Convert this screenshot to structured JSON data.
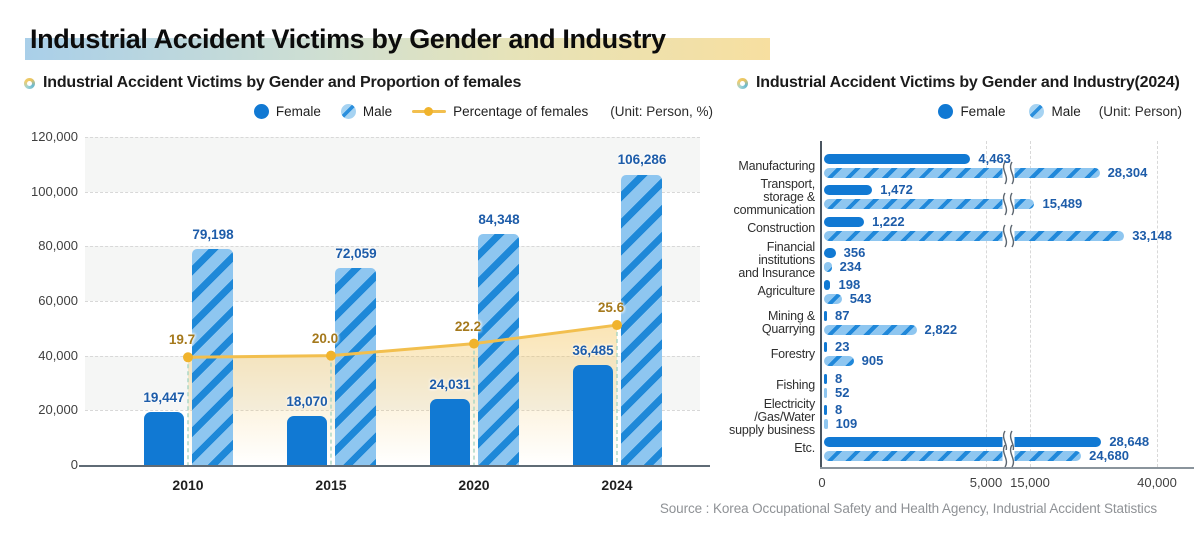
{
  "page_title": "Industrial Accident Victims by Gender and Industry",
  "source_note": "Source : Korea Occupational Safety and Health Agency, Industrial Accident Statistics",
  "colors": {
    "female": "#1179d3",
    "male_base": "#8ec6f0",
    "male_stripe": "#1e88d8",
    "line": "#f2bf4e",
    "line_point": "#f0b32c",
    "value_label": "#1d5ca9",
    "pct_label": "#a5791c",
    "zebra_band": "#f5f6f5",
    "grid": "#d8d8d8",
    "drop_line": "#a7d5c3",
    "title_band_gradient": [
      "#a9cfe9",
      "#dce3c4",
      "#f7dfa0"
    ]
  },
  "chart_data": [
    {
      "type": "bar",
      "title": "Industrial Accident Victims by Gender and Proportion of females",
      "unit_label": "(Unit: Person, %)",
      "legend_position": "top",
      "categories": [
        "2010",
        "2015",
        "2020",
        "2024"
      ],
      "series": [
        {
          "name": "Female",
          "values": [
            19447,
            18070,
            24031,
            36485
          ]
        },
        {
          "name": "Male",
          "values": [
            79198,
            72059,
            84348,
            106286
          ]
        }
      ],
      "line_series": {
        "name": "Percentage of females",
        "values": [
          19.7,
          20.0,
          22.2,
          25.6
        ],
        "labels": [
          "19.7",
          "20.0",
          "22.2",
          "25.6"
        ],
        "note": "percent plotted on person axis at value x 2000"
      },
      "ylim": [
        0,
        120000
      ],
      "yticks": [
        0,
        20000,
        40000,
        60000,
        80000,
        100000,
        120000
      ],
      "grid": "horizontal dashed with alternating shaded bands"
    },
    {
      "type": "bar-horizontal",
      "title": "Industrial Accident Victims by Gender and Industry(2024)",
      "unit_label": "(Unit: Person)",
      "legend_position": "top-right",
      "categories": [
        [
          "Manufacturing"
        ],
        [
          "Transport,",
          "storage &",
          "communication"
        ],
        [
          "Construction"
        ],
        [
          "Financial",
          "institutions",
          "and Insurance"
        ],
        [
          "Agriculture"
        ],
        [
          "Mining &",
          "Quarrying"
        ],
        [
          "Forestry"
        ],
        [
          "Fishing"
        ],
        [
          "Electricity",
          "/Gas/Water",
          "supply business"
        ],
        [
          "Etc."
        ]
      ],
      "series": [
        {
          "name": "Female",
          "values": [
            4463,
            1472,
            1222,
            356,
            198,
            87,
            23,
            8,
            8,
            28648
          ]
        },
        {
          "name": "Male",
          "values": [
            28304,
            15489,
            33148,
            234,
            543,
            2822,
            905,
            52,
            109,
            24680
          ]
        }
      ],
      "xticks": [
        {
          "v": 0,
          "label": "0"
        },
        {
          "v": 5000,
          "label": "5,000"
        },
        {
          "v": 15000,
          "label": "15,000"
        },
        {
          "v": 40000,
          "label": "40,000"
        }
      ],
      "axis_break": {
        "between": [
          5000,
          15000
        ]
      },
      "grid": "vertical dashed at 5,000 / 15,000 / 40,000"
    }
  ]
}
